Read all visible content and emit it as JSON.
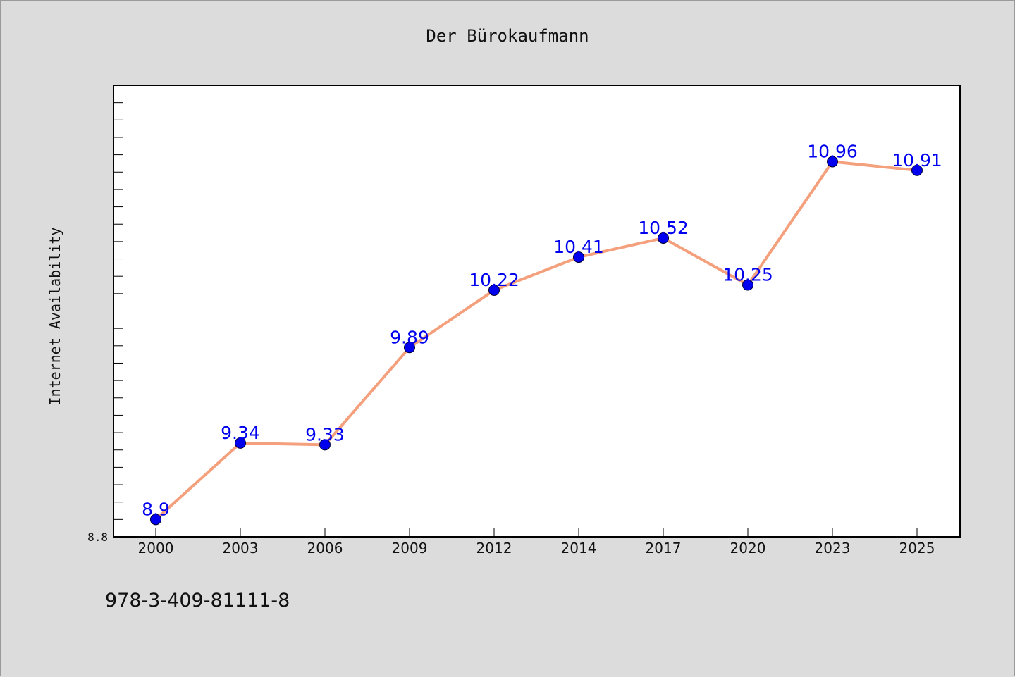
{
  "chart_data": {
    "type": "line",
    "title": "Der Bürokaufmann",
    "xlabel": "",
    "ylabel": "Internet Availability",
    "categories": [
      "2000",
      "2003",
      "2006",
      "2009",
      "2012",
      "2014",
      "2017",
      "2020",
      "2023",
      "2025"
    ],
    "series": [
      {
        "values": [
          8.9,
          9.34,
          9.33,
          9.89,
          10.22,
          10.41,
          10.52,
          10.25,
          10.96,
          10.91
        ],
        "data_labels": [
          "8.9",
          "9.34",
          "9.33",
          "9.89",
          "10.22",
          "10.41",
          "10.52",
          "10.25",
          "10.96",
          "10.91"
        ]
      }
    ],
    "ylim": [
      8.8,
      11.4
    ],
    "y_tick_labels": [
      "8.8"
    ],
    "grid": false,
    "line_color": "#f4a07c",
    "marker_color": "#0000ee",
    "label_color": "#0000ee"
  },
  "footer": {
    "code": "978-3-409-81111-8"
  }
}
